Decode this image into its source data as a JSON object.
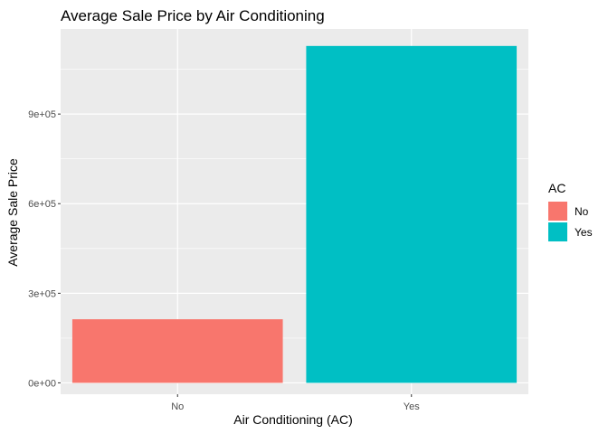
{
  "chart_data": {
    "type": "bar",
    "title": "Average Sale Price by Air Conditioning",
    "xlabel": "Air Conditioning (AC)",
    "ylabel": "Average Sale Price",
    "categories": [
      "No",
      "Yes"
    ],
    "values": [
      213000,
      1128000
    ],
    "ylim": [
      -38000,
      1185000
    ],
    "yticks": [
      0,
      300000,
      600000,
      900000
    ],
    "ytick_labels": [
      "0e+00",
      "3e+05",
      "6e+05",
      "9e+05"
    ],
    "grid": true,
    "legend": {
      "title": "AC",
      "position": "right",
      "items": [
        {
          "label": "No",
          "color": "#F8766D"
        },
        {
          "label": "Yes",
          "color": "#00BFC4"
        }
      ]
    },
    "colors": {
      "panel_background": "#EBEBEB",
      "grid": "#FFFFFF",
      "text": "#000000",
      "tick_text": "#4D4D4D"
    }
  }
}
